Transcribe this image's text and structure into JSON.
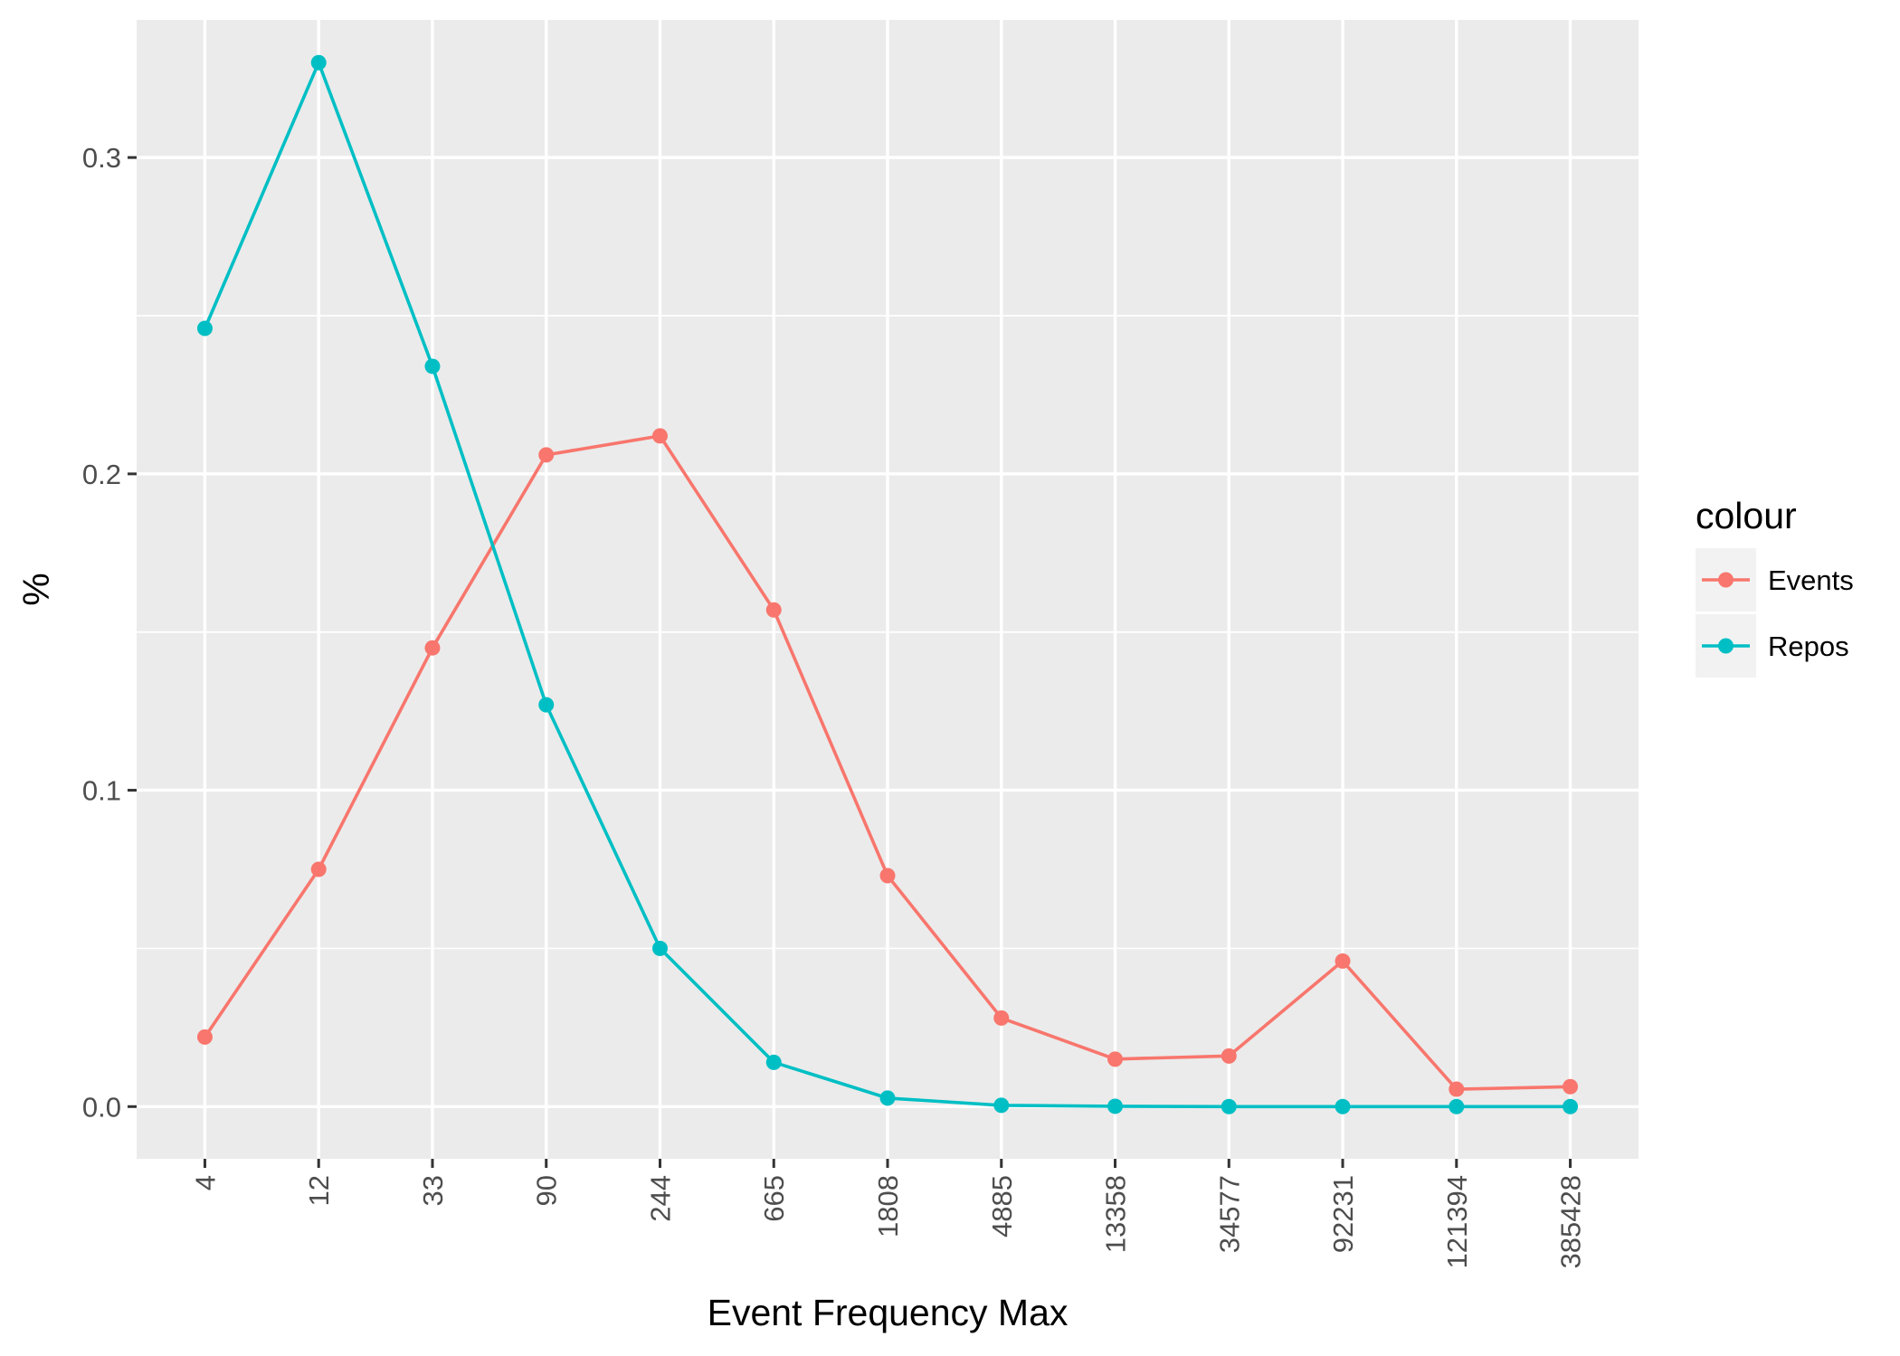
{
  "chart_data": {
    "type": "line",
    "xlabel": "Event Frequency Max",
    "ylabel": "%",
    "categories": [
      "4",
      "12",
      "33",
      "90",
      "244",
      "665",
      "1808",
      "4885",
      "13358",
      "34577",
      "92231",
      "121394",
      "385428"
    ],
    "ylim": [
      -0.0165,
      0.3435
    ],
    "yticks": [
      0.0,
      0.1,
      0.2,
      0.3
    ],
    "ytick_labels": [
      "0.0",
      "0.1",
      "0.2",
      "0.3"
    ],
    "grid": true,
    "legend": {
      "title": "colour",
      "position": "right"
    },
    "series": [
      {
        "name": "Events",
        "color": "#f8766d",
        "values": [
          0.022,
          0.075,
          0.145,
          0.206,
          0.212,
          0.157,
          0.073,
          0.028,
          0.015,
          0.016,
          0.046,
          0.0055,
          0.0063
        ]
      },
      {
        "name": "Repos",
        "color": "#00bfc4",
        "values": [
          0.246,
          0.33,
          0.234,
          0.127,
          0.05,
          0.014,
          0.0027,
          0.0004,
          0.0001,
          0.0,
          0.0,
          0.0,
          0.0
        ]
      }
    ]
  }
}
